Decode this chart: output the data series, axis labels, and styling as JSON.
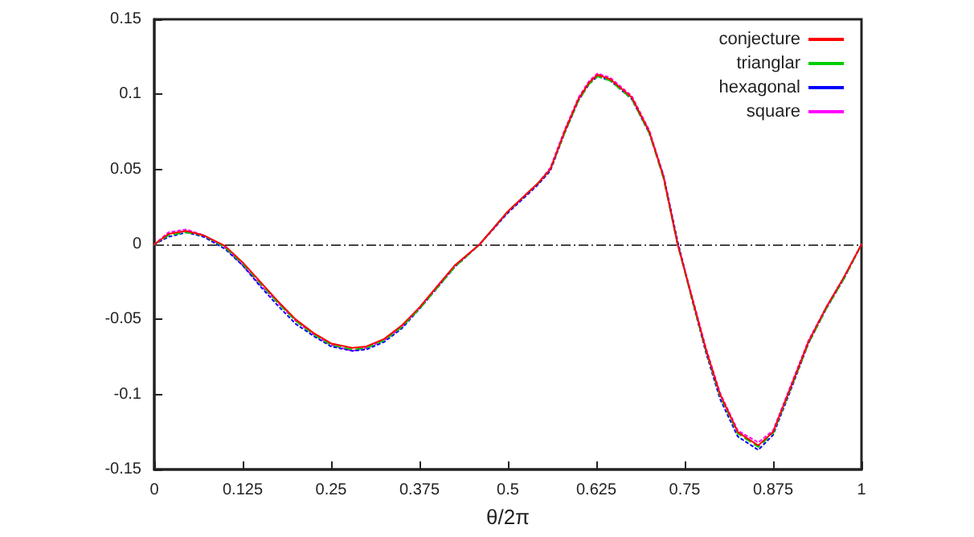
{
  "chart_data": {
    "type": "line",
    "xlabel": "θ/2π",
    "x": [
      0,
      0.02,
      0.045,
      0.07,
      0.1,
      0.125,
      0.15,
      0.175,
      0.2,
      0.225,
      0.25,
      0.28,
      0.3,
      0.325,
      0.35,
      0.375,
      0.4,
      0.425,
      0.46,
      0.5,
      0.543,
      0.56,
      0.58,
      0.6,
      0.615,
      0.627,
      0.645,
      0.675,
      0.7,
      0.72,
      0.74,
      0.76,
      0.78,
      0.8,
      0.825,
      0.854,
      0.875,
      0.9,
      0.925,
      0.95,
      0.975,
      1
    ],
    "series": [
      {
        "name": "conjecture",
        "color": "#ff0000",
        "line_style": "solid",
        "values": [
          0,
          0.007,
          0.009,
          0.006,
          -0.001,
          -0.012,
          -0.025,
          -0.038,
          -0.05,
          -0.059,
          -0.066,
          -0.069,
          -0.068,
          -0.063,
          -0.054,
          -0.042,
          -0.028,
          -0.014,
          0,
          0.022,
          0.041,
          0.05,
          0.075,
          0.097,
          0.108,
          0.113,
          0.11,
          0.098,
          0.075,
          0.045,
          0,
          -0.035,
          -0.07,
          -0.1,
          -0.125,
          -0.134,
          -0.125,
          -0.095,
          -0.065,
          -0.042,
          -0.022,
          0
        ]
      },
      {
        "name": "trianglar",
        "color": "#00cc00",
        "line_style": "dashed",
        "values": [
          0,
          0.006,
          0.008,
          0.006,
          -0.002,
          -0.013,
          -0.026,
          -0.039,
          -0.051,
          -0.06,
          -0.067,
          -0.07,
          -0.069,
          -0.064,
          -0.055,
          -0.043,
          -0.029,
          -0.015,
          0,
          0.022,
          0.041,
          0.05,
          0.074,
          0.096,
          0.107,
          0.112,
          0.109,
          0.097,
          0.074,
          0.044,
          0,
          -0.036,
          -0.071,
          -0.101,
          -0.126,
          -0.135,
          -0.126,
          -0.096,
          -0.066,
          -0.043,
          -0.023,
          0
        ]
      },
      {
        "name": "hexagonal",
        "color": "#0000ff",
        "line_style": "dotted",
        "values": [
          0,
          0.005,
          0.008,
          0.005,
          -0.003,
          -0.014,
          -0.028,
          -0.041,
          -0.053,
          -0.061,
          -0.068,
          -0.071,
          -0.07,
          -0.065,
          -0.056,
          -0.043,
          -0.029,
          -0.015,
          0,
          0.021,
          0.04,
          0.049,
          0.074,
          0.096,
          0.107,
          0.112,
          0.109,
          0.097,
          0.074,
          0.046,
          0.002,
          -0.036,
          -0.072,
          -0.103,
          -0.128,
          -0.137,
          -0.127,
          -0.097,
          -0.066,
          -0.043,
          -0.023,
          0
        ]
      },
      {
        "name": "square",
        "color": "#ff00ff",
        "line_style": "dotted",
        "values": [
          0,
          0.008,
          0.01,
          0.006,
          -0.002,
          -0.014,
          -0.027,
          -0.039,
          -0.051,
          -0.06,
          -0.067,
          -0.071,
          -0.069,
          -0.064,
          -0.055,
          -0.042,
          -0.028,
          -0.014,
          0,
          0.022,
          0.041,
          0.051,
          0.076,
          0.098,
          0.109,
          0.114,
          0.111,
          0.099,
          0.076,
          0.046,
          0.001,
          -0.034,
          -0.069,
          -0.099,
          -0.124,
          -0.132,
          -0.124,
          -0.094,
          -0.064,
          -0.042,
          -0.022,
          0
        ]
      }
    ],
    "xlim": [
      0,
      1
    ],
    "xticks": [
      0,
      0.125,
      0.25,
      0.375,
      0.5,
      0.625,
      0.75,
      0.875,
      1
    ],
    "ylim": [
      -0.15,
      0.15
    ],
    "yticks": [
      -0.15,
      -0.1,
      -0.05,
      0,
      0.05,
      0.1,
      0.15
    ],
    "ref_lines": [
      {
        "axis": "y",
        "value": 0,
        "color": "#444444",
        "line_style": "dashed"
      }
    ],
    "grid": false,
    "legend": "top right",
    "marker": "none"
  }
}
